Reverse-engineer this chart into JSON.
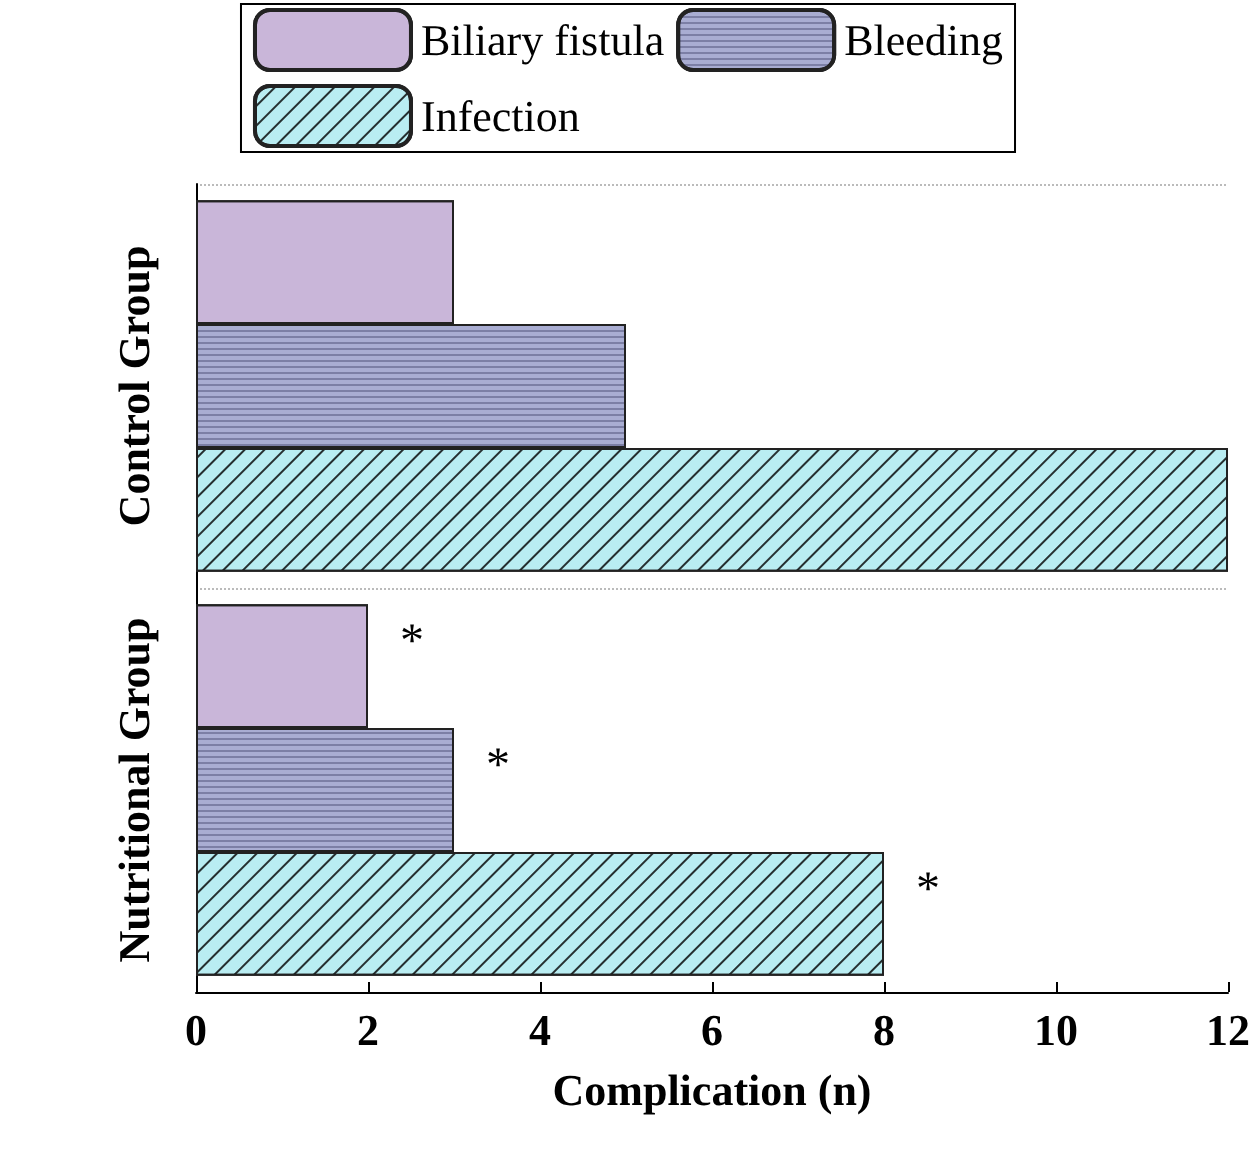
{
  "chart_data": {
    "type": "bar",
    "orientation": "horizontal",
    "xlabel": "Complication (n)",
    "categories": [
      "Control Group",
      "Nutritional Group"
    ],
    "series": [
      {
        "name": "Biliary fistula",
        "color": "#c9b6d9",
        "values": [
          3,
          2
        ],
        "value_labels": [
          null,
          "*"
        ]
      },
      {
        "name": "Bleeding",
        "color": "#a9add2",
        "values": [
          5,
          3
        ],
        "value_labels": [
          null,
          "*"
        ]
      },
      {
        "name": "Infection",
        "color": "#b9edf2",
        "values": [
          12,
          8
        ],
        "value_labels": [
          null,
          "*"
        ]
      }
    ],
    "xlim": [
      0,
      12
    ],
    "xticks": [
      0,
      2,
      4,
      6,
      8,
      10,
      12
    ],
    "grid": "y",
    "legend": "top"
  }
}
